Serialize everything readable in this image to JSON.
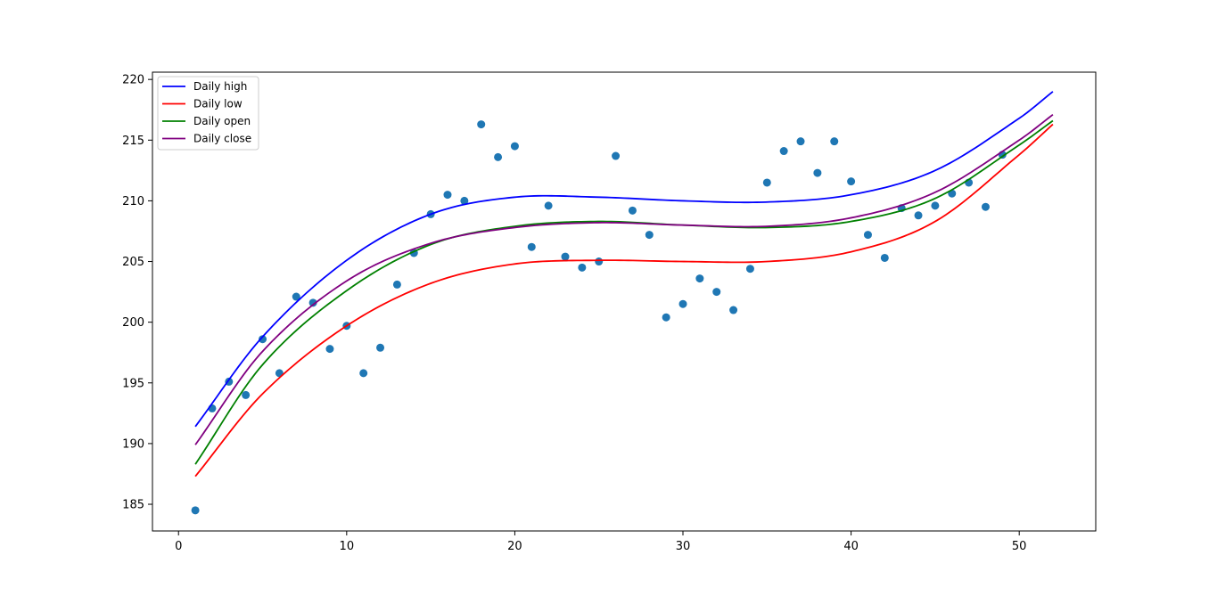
{
  "chart_data": {
    "type": "scatter",
    "title": "",
    "xlabel": "",
    "ylabel": "",
    "xlim": [
      -1.55,
      54.55
    ],
    "ylim": [
      182.8,
      220.6
    ],
    "x_ticks": [
      0,
      10,
      20,
      30,
      40,
      50
    ],
    "y_ticks": [
      185,
      190,
      195,
      200,
      205,
      210,
      215,
      220
    ],
    "grid": false,
    "legend_position": "top-left",
    "points": {
      "color": "#1f77b4",
      "x": [
        1,
        2,
        3,
        4,
        5,
        6,
        7,
        8,
        9,
        10,
        11,
        12,
        13,
        14,
        15,
        16,
        17,
        18,
        19,
        20,
        21,
        22,
        23,
        24,
        25,
        26,
        27,
        28,
        29,
        30,
        31,
        32,
        33,
        34,
        35,
        36,
        37,
        38,
        39,
        40,
        41,
        42,
        43,
        44,
        45,
        46,
        47,
        48,
        49
      ],
      "y": [
        184.5,
        192.9,
        195.1,
        194.0,
        198.6,
        195.8,
        202.1,
        201.6,
        197.8,
        199.7,
        195.8,
        197.9,
        203.1,
        205.7,
        208.9,
        210.5,
        210.0,
        216.3,
        213.6,
        214.5,
        206.2,
        209.6,
        205.4,
        204.5,
        205.0,
        213.7,
        209.2,
        207.2,
        200.4,
        201.5,
        203.6,
        202.5,
        201.0,
        204.4,
        211.5,
        214.1,
        214.9,
        212.3,
        214.9,
        211.6,
        207.2,
        205.3,
        209.4,
        208.8,
        209.6,
        210.6,
        211.5,
        209.5,
        213.8
      ]
    },
    "curve_x_range": [
      1,
      52
    ],
    "series": [
      {
        "name": "Daily high",
        "color": "#0000ff",
        "x": [
          1,
          5,
          10,
          15,
          20,
          25,
          30,
          35,
          40,
          45,
          50,
          52
        ],
        "y": [
          191.4,
          198.8,
          205.1,
          208.9,
          210.3,
          210.3,
          210.0,
          209.9,
          210.5,
          212.5,
          216.8,
          219.0
        ]
      },
      {
        "name": "Daily low",
        "color": "#ff0000",
        "x": [
          1,
          5,
          10,
          15,
          20,
          25,
          30,
          35,
          40,
          45,
          50,
          52
        ],
        "y": [
          187.3,
          194.1,
          199.7,
          203.2,
          204.8,
          205.1,
          205.0,
          205.0,
          205.8,
          208.3,
          213.8,
          216.3
        ]
      },
      {
        "name": "Daily open",
        "color": "#008000",
        "x": [
          1,
          5,
          10,
          15,
          20,
          25,
          30,
          35,
          40,
          45,
          50,
          52
        ],
        "y": [
          188.3,
          196.5,
          202.6,
          206.4,
          207.9,
          208.3,
          208.0,
          207.8,
          208.3,
          210.2,
          214.6,
          216.6
        ]
      },
      {
        "name": "Daily close",
        "color": "#800080",
        "x": [
          1,
          5,
          10,
          15,
          20,
          25,
          30,
          35,
          40,
          45,
          50,
          52
        ],
        "y": [
          189.9,
          197.6,
          203.4,
          206.5,
          207.8,
          208.2,
          208.0,
          207.9,
          208.6,
          210.7,
          215.0,
          217.1
        ]
      }
    ]
  }
}
